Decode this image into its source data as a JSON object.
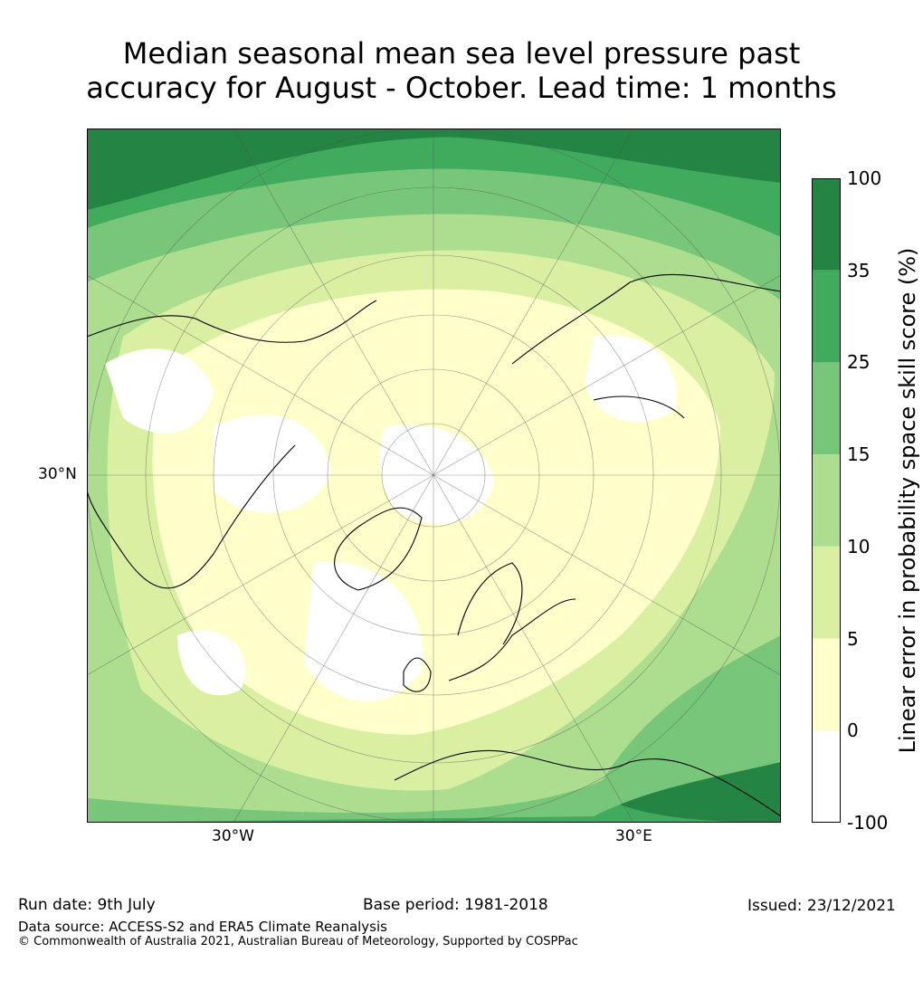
{
  "title": {
    "line1": "Median seasonal mean sea level pressure past",
    "line2": "accuracy for August - October. Lead time: 1 months"
  },
  "map": {
    "projection": "north-polar-stereographic",
    "lat_label": "30°N",
    "lon_labels": {
      "west": "30°W",
      "east": "30°E"
    }
  },
  "colorbar": {
    "label": "Linear error in probability space skill score (%)",
    "ticks": [
      "100",
      "35",
      "25",
      "15",
      "10",
      "5",
      "0",
      "-100"
    ],
    "bins": [
      {
        "range": "35 to 100",
        "color": "#238443"
      },
      {
        "range": "25 to 35",
        "color": "#41ab5d"
      },
      {
        "range": "15 to 25",
        "color": "#78c679"
      },
      {
        "range": "10 to 15",
        "color": "#addd8e"
      },
      {
        "range": "5 to 10",
        "color": "#d9f0a3"
      },
      {
        "range": "0 to 5",
        "color": "#ffffcc"
      },
      {
        "range": "-100 to 0",
        "color": "#ffffff"
      }
    ]
  },
  "footer": {
    "run_date": "Run date: 9th July",
    "base_period": "Base period: 1981-2018",
    "issued": "Issued: 23/12/2021",
    "data_source": "Data source: ACCESS-S2 and ERA5 Climate Reanalysis",
    "copyright": "© Commonwealth of Australia 2021, Australian Bureau of Meteorology, Supported by COSPPac"
  }
}
